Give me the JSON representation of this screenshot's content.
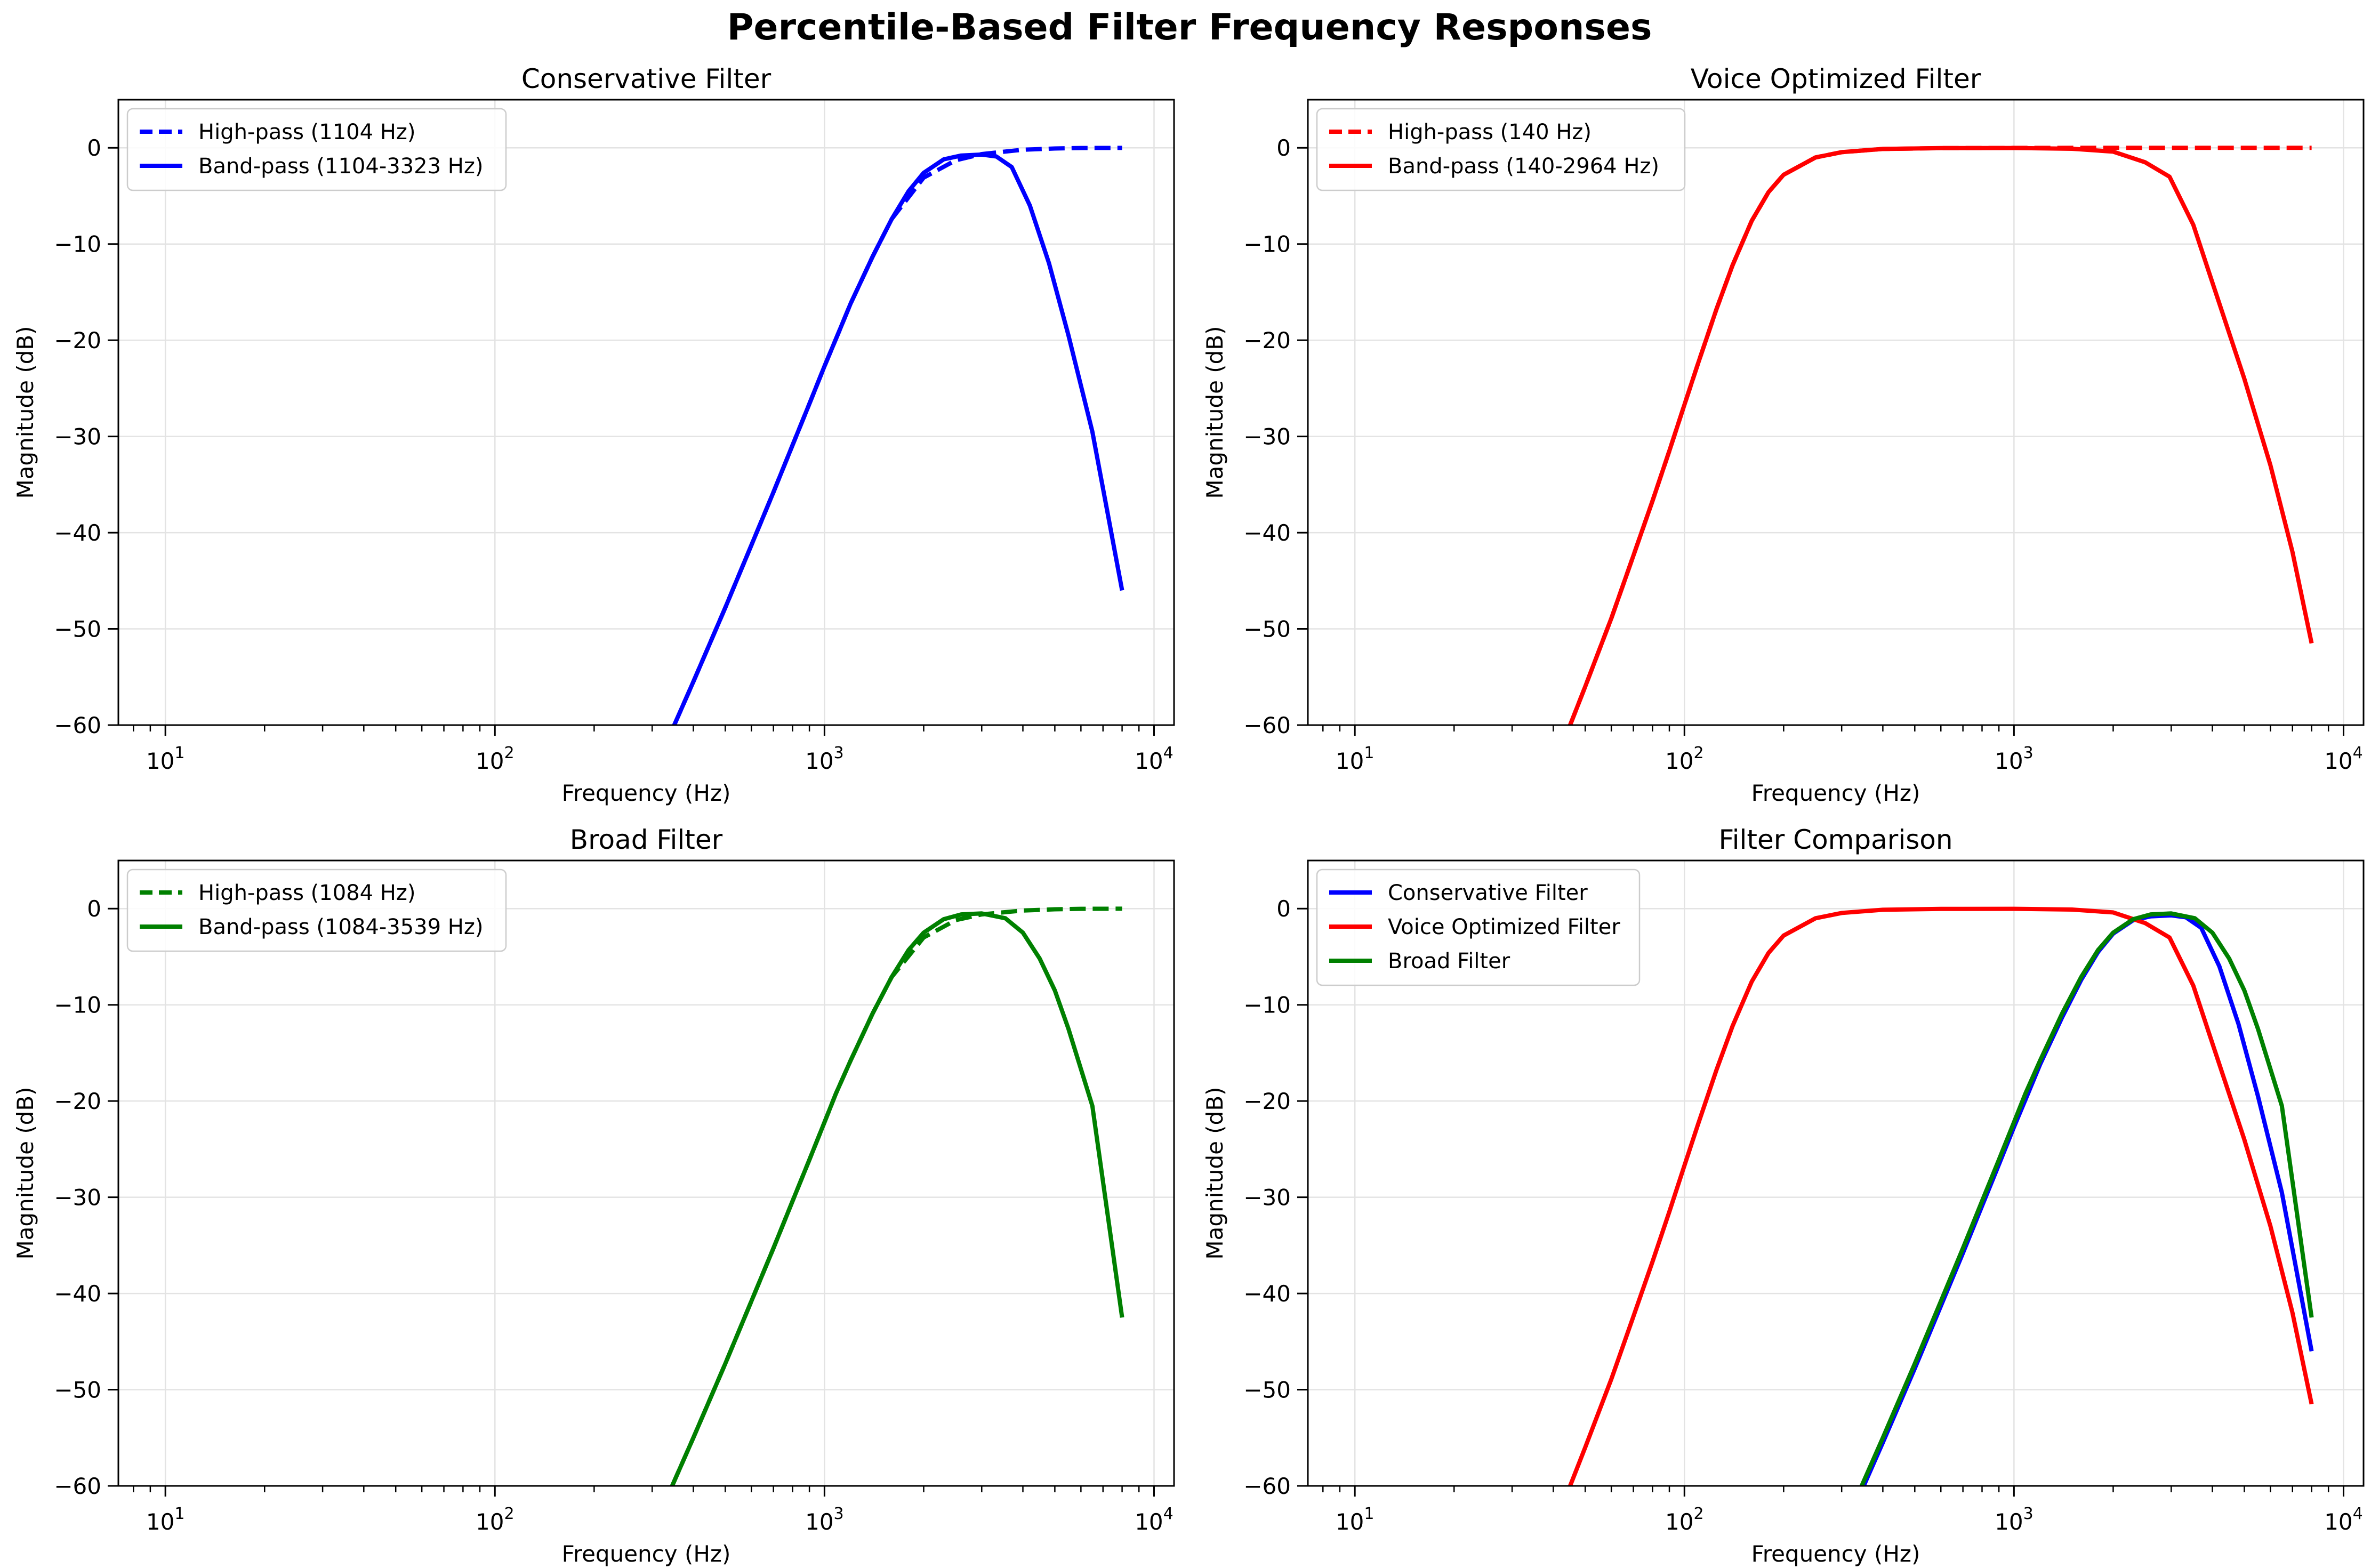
{
  "figure_title": "Percentile-Based Filter Frequency Responses",
  "colors": {
    "conservative": "#0000ff",
    "voice": "#ff0000",
    "broad": "#008000",
    "grid": "#e3e3e3",
    "axis": "#000000"
  },
  "chart_data": [
    {
      "type": "line",
      "title": "Conservative Filter",
      "xlabel": "Frequency (Hz)",
      "ylabel": "Magnitude (dB)",
      "xscale": "log",
      "xlim": [
        7.2,
        11500
      ],
      "ylim": [
        -60,
        5
      ],
      "xticks": [
        {
          "v": 10,
          "b": "10",
          "e": "1"
        },
        {
          "v": 100,
          "b": "10",
          "e": "2"
        },
        {
          "v": 1000,
          "b": "10",
          "e": "3"
        },
        {
          "v": 10000,
          "b": "10",
          "e": "4"
        }
      ],
      "yticks": [
        0,
        -10,
        -20,
        -30,
        -40,
        -50,
        -60
      ],
      "grid": true,
      "legend_position": "upper-left",
      "series": [
        {
          "name": "High-pass (1104 Hz)",
          "color": "#0000ff",
          "dash": true,
          "x": [
            350,
            400,
            500,
            600,
            700,
            800,
            900,
            1000,
            1104,
            1200,
            1400,
            1600,
            2000,
            2500,
            3000,
            4000,
            5000,
            6000,
            8000
          ],
          "y": [
            -60,
            -55.5,
            -47.8,
            -41.3,
            -35.8,
            -30.9,
            -26.6,
            -22.7,
            -19.2,
            -16.2,
            -11.3,
            -7.4,
            -3.1,
            -1.3,
            -0.65,
            -0.2,
            -0.07,
            -0.02,
            -0.01
          ]
        },
        {
          "name": "Band-pass (1104-3323 Hz)",
          "color": "#0000ff",
          "dash": false,
          "x": [
            350,
            400,
            500,
            600,
            700,
            800,
            900,
            1000,
            1104,
            1200,
            1400,
            1600,
            1800,
            2000,
            2300,
            2600,
            3000,
            3323,
            3700,
            4200,
            4800,
            5500,
            6500,
            8000
          ],
          "y": [
            -60,
            -55.5,
            -47.8,
            -41.3,
            -35.8,
            -30.9,
            -26.6,
            -22.7,
            -19.2,
            -16.2,
            -11.3,
            -7.4,
            -4.5,
            -2.6,
            -1.2,
            -0.8,
            -0.7,
            -0.9,
            -2.0,
            -6.0,
            -12.0,
            -19.5,
            -29.5,
            -46.0
          ]
        }
      ]
    },
    {
      "type": "line",
      "title": "Voice Optimized Filter",
      "xlabel": "Frequency (Hz)",
      "ylabel": "Magnitude (dB)",
      "xscale": "log",
      "xlim": [
        7.2,
        11500
      ],
      "ylim": [
        -60,
        5
      ],
      "xticks": [
        {
          "v": 10,
          "b": "10",
          "e": "1"
        },
        {
          "v": 100,
          "b": "10",
          "e": "2"
        },
        {
          "v": 1000,
          "b": "10",
          "e": "3"
        },
        {
          "v": 10000,
          "b": "10",
          "e": "4"
        }
      ],
      "yticks": [
        0,
        -10,
        -20,
        -30,
        -40,
        -50,
        -60
      ],
      "grid": true,
      "legend_position": "upper-left",
      "series": [
        {
          "name": "High-pass (140 Hz)",
          "color": "#ff0000",
          "dash": true,
          "x": [
            45,
            50,
            60,
            70,
            80,
            90,
            100,
            110,
            125,
            140,
            160,
            180,
            200,
            250,
            300,
            400,
            600,
            1000,
            2000,
            4000,
            8000
          ],
          "y": [
            -60,
            -56,
            -48.9,
            -42.4,
            -36.7,
            -31.5,
            -26.7,
            -22.4,
            -16.8,
            -12.2,
            -7.6,
            -4.6,
            -2.8,
            -1.0,
            -0.45,
            -0.12,
            -0.03,
            -0.01,
            0,
            0,
            0
          ]
        },
        {
          "name": "Band-pass (140-2964 Hz)",
          "color": "#ff0000",
          "dash": false,
          "x": [
            45,
            50,
            60,
            70,
            80,
            90,
            100,
            110,
            125,
            140,
            160,
            180,
            200,
            250,
            300,
            400,
            600,
            1000,
            1500,
            2000,
            2500,
            2964,
            3500,
            4000,
            5000,
            6000,
            7000,
            8000
          ],
          "y": [
            -60,
            -56,
            -48.9,
            -42.4,
            -36.7,
            -31.5,
            -26.7,
            -22.4,
            -16.8,
            -12.2,
            -7.6,
            -4.6,
            -2.8,
            -1.0,
            -0.45,
            -0.12,
            -0.03,
            -0.02,
            -0.1,
            -0.4,
            -1.5,
            -3.0,
            -8.0,
            -14.0,
            -24.0,
            -33.0,
            -42.0,
            -51.5
          ]
        }
      ]
    },
    {
      "type": "line",
      "title": "Broad Filter",
      "xlabel": "Frequency (Hz)",
      "ylabel": "Magnitude (dB)",
      "xscale": "log",
      "xlim": [
        7.2,
        11500
      ],
      "ylim": [
        -60,
        5
      ],
      "xticks": [
        {
          "v": 10,
          "b": "10",
          "e": "1"
        },
        {
          "v": 100,
          "b": "10",
          "e": "2"
        },
        {
          "v": 1000,
          "b": "10",
          "e": "3"
        },
        {
          "v": 10000,
          "b": "10",
          "e": "4"
        }
      ],
      "yticks": [
        0,
        -10,
        -20,
        -30,
        -40,
        -50,
        -60
      ],
      "grid": true,
      "legend_position": "upper-left",
      "series": [
        {
          "name": "High-pass (1084 Hz)",
          "color": "#008000",
          "dash": true,
          "x": [
            345,
            400,
            500,
            600,
            700,
            800,
            900,
            1000,
            1084,
            1200,
            1400,
            1600,
            2000,
            2500,
            3000,
            4000,
            5000,
            6000,
            8000
          ],
          "y": [
            -60,
            -55.0,
            -47.3,
            -40.8,
            -35.3,
            -30.4,
            -26.1,
            -22.2,
            -19.2,
            -15.8,
            -10.9,
            -7.1,
            -3.0,
            -1.2,
            -0.6,
            -0.2,
            -0.07,
            -0.02,
            -0.01
          ]
        },
        {
          "name": "Band-pass (1084-3539 Hz)",
          "color": "#008000",
          "dash": false,
          "x": [
            345,
            400,
            500,
            600,
            700,
            800,
            900,
            1000,
            1084,
            1200,
            1400,
            1600,
            1800,
            2000,
            2300,
            2600,
            3000,
            3539,
            4000,
            4500,
            5000,
            5500,
            6500,
            8000
          ],
          "y": [
            -60,
            -55.0,
            -47.3,
            -40.8,
            -35.3,
            -30.4,
            -26.1,
            -22.2,
            -19.2,
            -15.8,
            -10.9,
            -7.1,
            -4.3,
            -2.5,
            -1.1,
            -0.6,
            -0.5,
            -1.0,
            -2.5,
            -5.2,
            -8.5,
            -12.5,
            -20.5,
            -42.5
          ]
        }
      ]
    },
    {
      "type": "line",
      "title": "Filter Comparison",
      "xlabel": "Frequency (Hz)",
      "ylabel": "Magnitude (dB)",
      "xscale": "log",
      "xlim": [
        7.2,
        11500
      ],
      "ylim": [
        -60,
        5
      ],
      "xticks": [
        {
          "v": 10,
          "b": "10",
          "e": "1"
        },
        {
          "v": 100,
          "b": "10",
          "e": "2"
        },
        {
          "v": 1000,
          "b": "10",
          "e": "3"
        },
        {
          "v": 10000,
          "b": "10",
          "e": "4"
        }
      ],
      "yticks": [
        0,
        -10,
        -20,
        -30,
        -40,
        -50,
        -60
      ],
      "grid": true,
      "legend_position": "upper-left",
      "series": [
        {
          "name": "Conservative Filter",
          "color": "#0000ff",
          "dash": false,
          "x": [
            350,
            400,
            500,
            600,
            700,
            800,
            900,
            1000,
            1104,
            1200,
            1400,
            1600,
            1800,
            2000,
            2300,
            2600,
            3000,
            3323,
            3700,
            4200,
            4800,
            5500,
            6500,
            8000
          ],
          "y": [
            -60,
            -55.5,
            -47.8,
            -41.3,
            -35.8,
            -30.9,
            -26.6,
            -22.7,
            -19.2,
            -16.2,
            -11.3,
            -7.4,
            -4.5,
            -2.6,
            -1.2,
            -0.8,
            -0.7,
            -0.9,
            -2.0,
            -6.0,
            -12.0,
            -19.5,
            -29.5,
            -46.0
          ]
        },
        {
          "name": "Voice Optimized Filter",
          "color": "#ff0000",
          "dash": false,
          "x": [
            45,
            50,
            60,
            70,
            80,
            90,
            100,
            110,
            125,
            140,
            160,
            180,
            200,
            250,
            300,
            400,
            600,
            1000,
            1500,
            2000,
            2500,
            2964,
            3500,
            4000,
            5000,
            6000,
            7000,
            8000
          ],
          "y": [
            -60,
            -56,
            -48.9,
            -42.4,
            -36.7,
            -31.5,
            -26.7,
            -22.4,
            -16.8,
            -12.2,
            -7.6,
            -4.6,
            -2.8,
            -1.0,
            -0.45,
            -0.12,
            -0.03,
            -0.02,
            -0.1,
            -0.4,
            -1.5,
            -3.0,
            -8.0,
            -14.0,
            -24.0,
            -33.0,
            -42.0,
            -51.5
          ]
        },
        {
          "name": "Broad Filter",
          "color": "#008000",
          "dash": false,
          "x": [
            345,
            400,
            500,
            600,
            700,
            800,
            900,
            1000,
            1084,
            1200,
            1400,
            1600,
            1800,
            2000,
            2300,
            2600,
            3000,
            3539,
            4000,
            4500,
            5000,
            5500,
            6500,
            8000
          ],
          "y": [
            -60,
            -55.0,
            -47.3,
            -40.8,
            -35.3,
            -30.4,
            -26.1,
            -22.2,
            -19.2,
            -15.8,
            -10.9,
            -7.1,
            -4.3,
            -2.5,
            -1.1,
            -0.6,
            -0.5,
            -1.0,
            -2.5,
            -5.2,
            -8.5,
            -12.5,
            -20.5,
            -42.5
          ]
        }
      ]
    }
  ]
}
